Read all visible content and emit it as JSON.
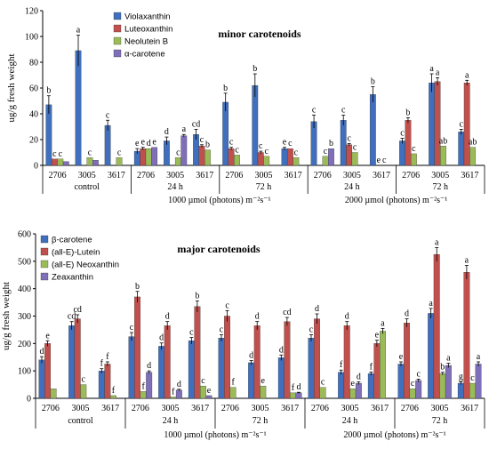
{
  "colors": {
    "violaxanthin": "#3f6fbd",
    "luteoxanthin": "#c0504d",
    "neolutein_b": "#9bbb59",
    "alpha_carotene": "#7f6fb8",
    "beta_carotene": "#3f6fbd",
    "all_e_lutein": "#c0504d",
    "all_e_neoxanthin": "#9bbb59",
    "zeaxanthin": "#7f6fb8",
    "axis": "#000000",
    "error_bar": "#000000"
  },
  "shared": {
    "ylabel": "ug/g fresh weight",
    "genotypes": [
      "2706",
      "3005",
      "3617",
      "2706",
      "3005",
      "3617",
      "2706",
      "3005",
      "3617",
      "2706",
      "3005",
      "3617",
      "2706",
      "3005",
      "3617"
    ],
    "groups": [
      "control",
      "24 h",
      "72 h",
      "24 h",
      "72 h"
    ],
    "conditions": [
      "1000 µmol (photons) m⁻²s⁻¹",
      "2000 µmol (photons) m⁻²s⁻¹"
    ]
  },
  "chart_data": [
    {
      "type": "bar",
      "title": "minor carotenoids",
      "ylabel": "ug/g fresh weight",
      "ylim": [
        0,
        120
      ],
      "yticks": [
        0,
        20,
        40,
        60,
        80,
        100,
        120
      ],
      "grid": false,
      "legend": "top-left",
      "categories": [
        "2706",
        "3005",
        "3617",
        "2706",
        "3005",
        "3617",
        "2706",
        "3005",
        "3617",
        "2706",
        "3005",
        "3617",
        "2706",
        "3005",
        "3617"
      ],
      "series": [
        {
          "name": "Violaxanthin",
          "color_key": "violaxanthin",
          "values": [
            47,
            89,
            31,
            11,
            19,
            24,
            49,
            62,
            13,
            34,
            35,
            55,
            19,
            64,
            26
          ],
          "errors": [
            7,
            12,
            4,
            2,
            3,
            4,
            7,
            9,
            1,
            5,
            4,
            6,
            2,
            7,
            2
          ],
          "labels": [
            "b",
            "a",
            "c",
            "e",
            "d",
            "cd",
            "b",
            "b",
            "e",
            "c",
            "c",
            "b",
            "c",
            "a",
            "c"
          ]
        },
        {
          "name": "Luteoxanthin",
          "color_key": "luteoxanthin",
          "values": [
            5,
            0,
            0,
            13,
            0,
            15,
            13,
            10,
            13,
            0,
            16,
            0,
            35,
            65,
            64
          ],
          "errors": [
            0,
            0,
            0,
            1,
            0,
            1,
            1,
            1,
            0,
            0,
            1,
            0,
            2,
            3,
            2
          ],
          "labels": [
            "c",
            "",
            "",
            "e",
            "",
            "c",
            "c",
            "c",
            "c",
            "",
            "c",
            "e",
            "b",
            "a",
            "a"
          ]
        },
        {
          "name": "Neolutein B",
          "color_key": "neolutein_b",
          "values": [
            5,
            6,
            6,
            13,
            6,
            12,
            8,
            7,
            6,
            7,
            10,
            0,
            9,
            15,
            14
          ],
          "errors": [
            0,
            0,
            0,
            0,
            0,
            0,
            0,
            0,
            0,
            0,
            0,
            0,
            0,
            0,
            0
          ],
          "labels": [
            "c",
            "c",
            "c",
            "d",
            "c",
            "b",
            "c",
            "c",
            "c",
            "c",
            "c",
            "c",
            "c",
            "ab",
            "ab"
          ]
        },
        {
          "name": "α-carotene",
          "color_key": "alpha_carotene",
          "values": [
            3,
            4,
            0,
            14,
            23,
            0,
            0,
            0,
            0,
            13,
            0,
            0,
            0,
            0,
            0
          ],
          "errors": [
            0,
            0,
            0,
            0,
            1,
            0,
            0,
            0,
            0,
            0,
            0,
            0,
            0,
            0,
            0
          ],
          "labels": [
            "",
            "",
            "",
            "e",
            "a",
            "",
            "",
            "",
            "",
            "b",
            "",
            "",
            "",
            "",
            ""
          ]
        }
      ],
      "groups": [
        "control",
        "24 h",
        "72 h",
        "24 h",
        "72 h"
      ],
      "conditions": [
        "1000 µmol (photons) m⁻²s⁻¹",
        "2000 µmol (photons) m⁻²s⁻¹"
      ]
    },
    {
      "type": "bar",
      "title": "major carotenoids",
      "ylabel": "ug/g fresh weight",
      "ylim": [
        0,
        600
      ],
      "yticks": [
        0,
        100,
        200,
        300,
        400,
        500,
        600
      ],
      "grid": false,
      "legend": "top-left",
      "categories": [
        "2706",
        "3005",
        "3617",
        "2706",
        "3005",
        "3617",
        "2706",
        "3005",
        "3617",
        "2706",
        "3005",
        "3617",
        "2706",
        "3005",
        "3617"
      ],
      "series": [
        {
          "name": "β-carotene",
          "color_key": "beta_carotene",
          "values": [
            140,
            265,
            100,
            225,
            190,
            210,
            220,
            130,
            148,
            220,
            95,
            90,
            125,
            310,
            55
          ],
          "errors": [
            12,
            15,
            8,
            15,
            12,
            12,
            12,
            8,
            10,
            12,
            8,
            6,
            8,
            18,
            5
          ],
          "labels": [
            "d",
            "cd",
            "f",
            "c",
            "d",
            "c",
            "c",
            "d",
            "d",
            "c",
            "f",
            "f",
            "e",
            "a",
            "g"
          ]
        },
        {
          "name": "(all-E)-Lutein",
          "color_key": "all_e_lutein",
          "values": [
            200,
            290,
            125,
            370,
            265,
            335,
            300,
            265,
            280,
            290,
            265,
            200,
            275,
            525,
            460
          ],
          "errors": [
            10,
            15,
            8,
            20,
            15,
            20,
            20,
            15,
            15,
            18,
            15,
            12,
            15,
            25,
            25
          ],
          "labels": [
            "e",
            "cd",
            "f",
            "b",
            "d",
            "b",
            "c",
            "d",
            "cd",
            "d",
            "d",
            "e",
            "d",
            "a",
            "a"
          ]
        },
        {
          "name": "(all-E) Neoxanthin",
          "color_key": "all_e_neoxanthin",
          "values": [
            35,
            50,
            10,
            25,
            5,
            45,
            40,
            45,
            20,
            40,
            35,
            245,
            35,
            90,
            55
          ],
          "errors": [
            0,
            0,
            0,
            0,
            0,
            0,
            0,
            0,
            0,
            0,
            0,
            10,
            0,
            5,
            0
          ],
          "labels": [
            "",
            "c",
            "f",
            "f",
            "f",
            "c",
            "f",
            "e",
            "f",
            "c",
            "e",
            "a",
            "c",
            "b",
            "c"
          ]
        },
        {
          "name": "Zeaxanthin",
          "color_key": "zeaxanthin",
          "values": [
            0,
            0,
            0,
            95,
            30,
            10,
            0,
            0,
            20,
            0,
            55,
            0,
            65,
            120,
            125
          ],
          "errors": [
            0,
            0,
            0,
            5,
            3,
            0,
            0,
            0,
            2,
            0,
            5,
            0,
            5,
            8,
            8
          ],
          "labels": [
            "",
            "",
            "",
            "d",
            "d",
            "e",
            "",
            "",
            "d",
            "",
            "d",
            "",
            "c",
            "a",
            "a"
          ]
        }
      ],
      "groups": [
        "control",
        "24 h",
        "72 h",
        "24 h",
        "72 h"
      ],
      "conditions": [
        "1000 µmol (photons) m⁻²s⁻¹",
        "2000 µmol (photons) m⁻²s⁻¹"
      ]
    }
  ]
}
